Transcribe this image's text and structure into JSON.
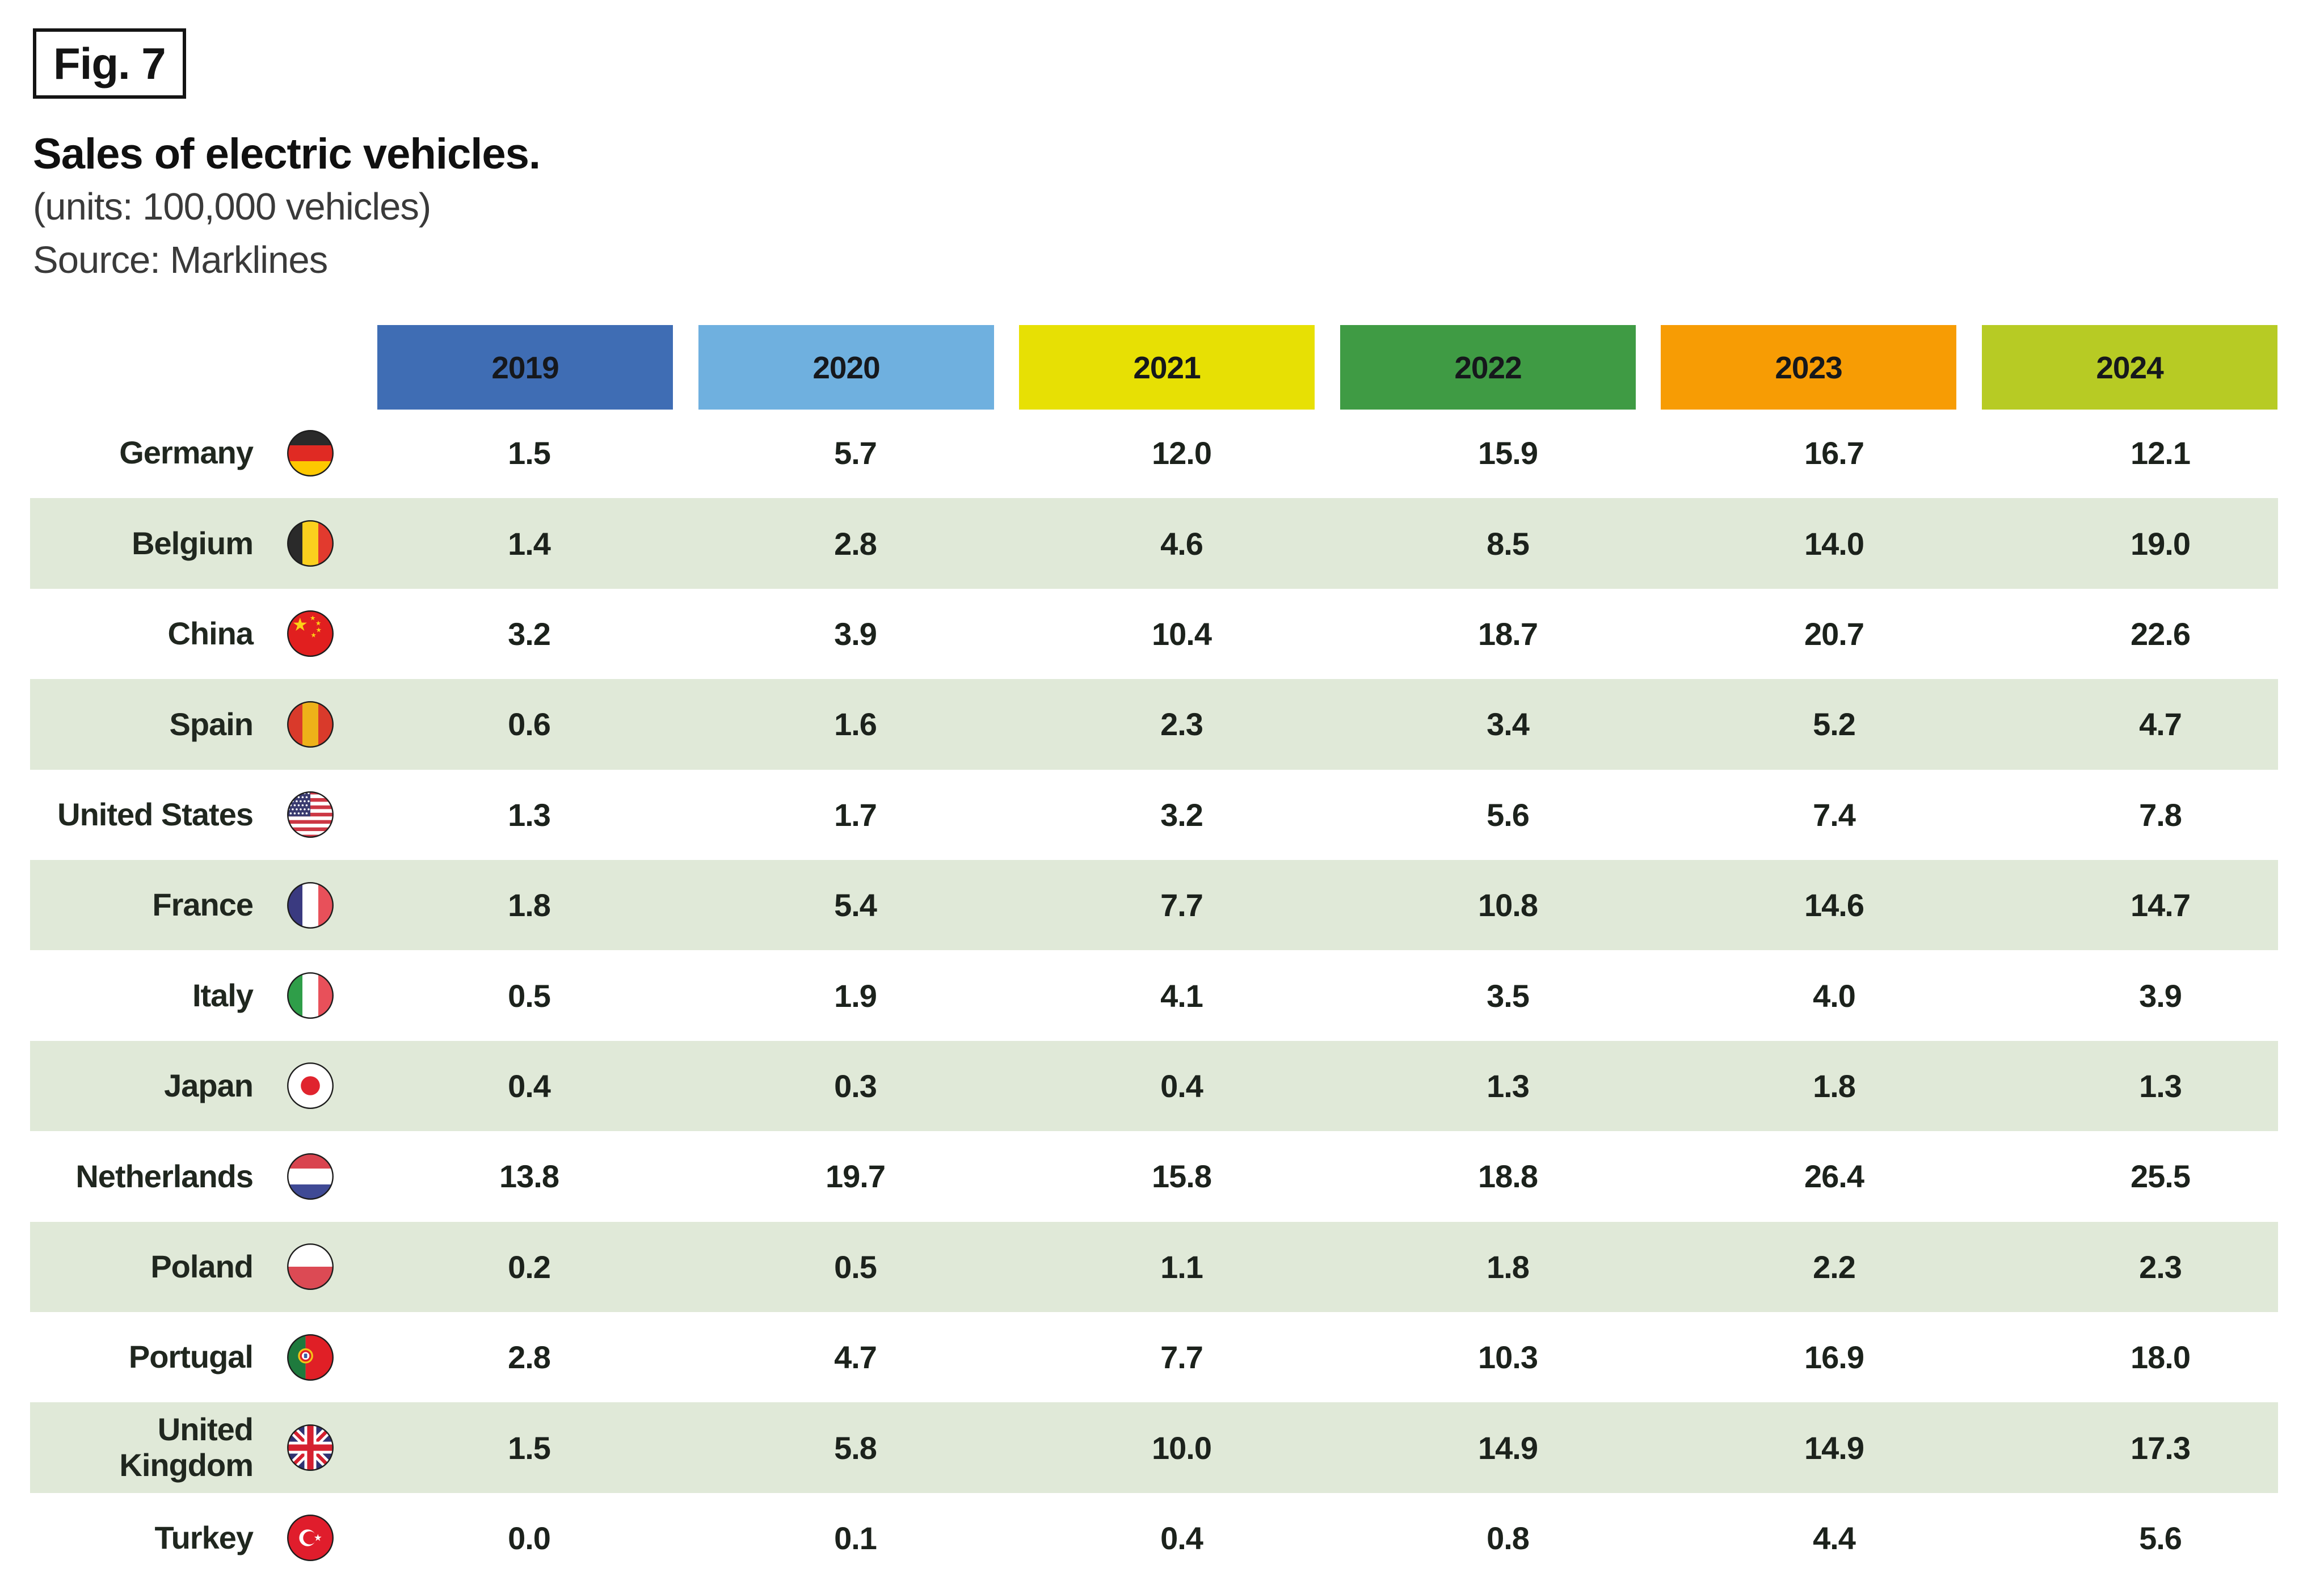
{
  "figure": {
    "label": "Fig. 7",
    "title": "Sales of electric vehicles.",
    "subtitle": "(units: 100,000 vehicles)",
    "source": "Source: Marklines"
  },
  "table": {
    "stripe_color": "#e0e9d8",
    "years": [
      {
        "label": "2019",
        "color": "#3f6db4"
      },
      {
        "label": "2020",
        "color": "#6fb0df"
      },
      {
        "label": "2021",
        "color": "#e7e004"
      },
      {
        "label": "2022",
        "color": "#3f9b44"
      },
      {
        "label": "2023",
        "color": "#f79c04"
      },
      {
        "label": "2024",
        "color": "#b7cb24"
      }
    ],
    "rows": [
      {
        "country": "Germany",
        "flag": "germany",
        "values": [
          "1.5",
          "5.7",
          "12.0",
          "15.9",
          "16.7",
          "12.1"
        ]
      },
      {
        "country": "Belgium",
        "flag": "belgium",
        "values": [
          "1.4",
          "2.8",
          "4.6",
          "8.5",
          "14.0",
          "19.0"
        ]
      },
      {
        "country": "China",
        "flag": "china",
        "values": [
          "3.2",
          "3.9",
          "10.4",
          "18.7",
          "20.7",
          "22.6"
        ]
      },
      {
        "country": "Spain",
        "flag": "spain",
        "values": [
          "0.6",
          "1.6",
          "2.3",
          "3.4",
          "5.2",
          "4.7"
        ]
      },
      {
        "country": "United States",
        "flag": "us",
        "values": [
          "1.3",
          "1.7",
          "3.2",
          "5.6",
          "7.4",
          "7.8"
        ]
      },
      {
        "country": "France",
        "flag": "france",
        "values": [
          "1.8",
          "5.4",
          "7.7",
          "10.8",
          "14.6",
          "14.7"
        ]
      },
      {
        "country": "Italy",
        "flag": "italy",
        "values": [
          "0.5",
          "1.9",
          "4.1",
          "3.5",
          "4.0",
          "3.9"
        ]
      },
      {
        "country": "Japan",
        "flag": "japan",
        "values": [
          "0.4",
          "0.3",
          "0.4",
          "1.3",
          "1.8",
          "1.3"
        ]
      },
      {
        "country": "Netherlands",
        "flag": "netherlands",
        "values": [
          "13.8",
          "19.7",
          "15.8",
          "18.8",
          "26.4",
          "25.5"
        ]
      },
      {
        "country": "Poland",
        "flag": "poland",
        "values": [
          "0.2",
          "0.5",
          "1.1",
          "1.8",
          "2.2",
          "2.3"
        ]
      },
      {
        "country": "Portugal",
        "flag": "portugal",
        "values": [
          "2.8",
          "4.7",
          "7.7",
          "10.3",
          "16.9",
          "18.0"
        ]
      },
      {
        "country": "United\nKingdom",
        "flag": "uk",
        "values": [
          "1.5",
          "5.8",
          "10.0",
          "14.9",
          "14.9",
          "17.3"
        ]
      },
      {
        "country": "Turkey",
        "flag": "turkey",
        "values": [
          "0.0",
          "0.1",
          "0.4",
          "0.8",
          "4.4",
          "5.6"
        ]
      }
    ]
  },
  "chart_data": {
    "type": "table",
    "title": "Sales of electric vehicles.",
    "subtitle": "(units: 100,000 vehicles)",
    "source": "Source: Marklines",
    "columns": [
      "2019",
      "2020",
      "2021",
      "2022",
      "2023",
      "2024"
    ],
    "series": [
      {
        "name": "Germany",
        "values": [
          1.5,
          5.7,
          12.0,
          15.9,
          16.7,
          12.1
        ]
      },
      {
        "name": "Belgium",
        "values": [
          1.4,
          2.8,
          4.6,
          8.5,
          14.0,
          19.0
        ]
      },
      {
        "name": "China",
        "values": [
          3.2,
          3.9,
          10.4,
          18.7,
          20.7,
          22.6
        ]
      },
      {
        "name": "Spain",
        "values": [
          0.6,
          1.6,
          2.3,
          3.4,
          5.2,
          4.7
        ]
      },
      {
        "name": "United States",
        "values": [
          1.3,
          1.7,
          3.2,
          5.6,
          7.4,
          7.8
        ]
      },
      {
        "name": "France",
        "values": [
          1.8,
          5.4,
          7.7,
          10.8,
          14.6,
          14.7
        ]
      },
      {
        "name": "Italy",
        "values": [
          0.5,
          1.9,
          4.1,
          3.5,
          4.0,
          3.9
        ]
      },
      {
        "name": "Japan",
        "values": [
          0.4,
          0.3,
          0.4,
          1.3,
          1.8,
          1.3
        ]
      },
      {
        "name": "Netherlands",
        "values": [
          13.8,
          19.7,
          15.8,
          18.8,
          26.4,
          25.5
        ]
      },
      {
        "name": "Poland",
        "values": [
          0.2,
          0.5,
          1.1,
          1.8,
          2.2,
          2.3
        ]
      },
      {
        "name": "Portugal",
        "values": [
          2.8,
          4.7,
          7.7,
          10.3,
          16.9,
          18.0
        ]
      },
      {
        "name": "United Kingdom",
        "values": [
          1.5,
          5.8,
          10.0,
          14.9,
          14.9,
          17.3
        ]
      },
      {
        "name": "Turkey",
        "values": [
          0.0,
          0.1,
          0.4,
          0.8,
          4.4,
          5.6
        ]
      }
    ]
  }
}
